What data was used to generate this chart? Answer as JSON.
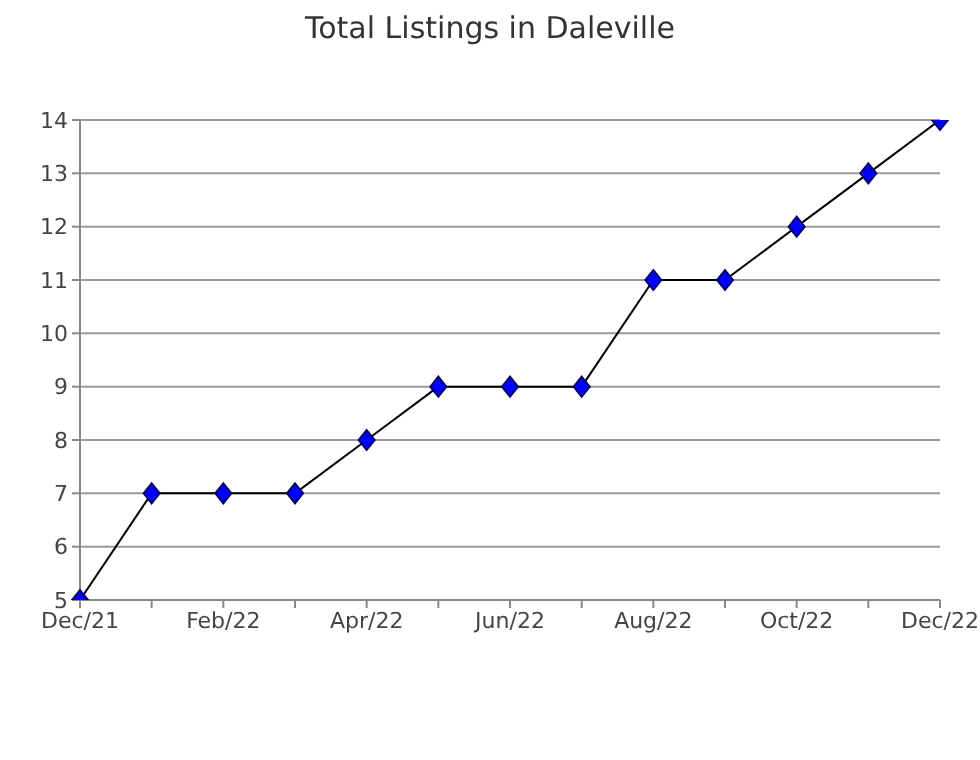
{
  "chart_data": {
    "type": "line",
    "title": "Total Listings in Daleville",
    "categories": [
      "Dec/21",
      null,
      "Feb/22",
      null,
      "Apr/22",
      null,
      "Jun/22",
      null,
      "Aug/22",
      null,
      "Oct/22",
      null,
      "Dec/22"
    ],
    "series": [
      {
        "color": "#0000ff",
        "values": [
          5,
          7,
          7,
          7,
          8,
          9,
          9,
          9,
          11,
          11,
          12,
          13,
          14
        ]
      }
    ],
    "ylim": [
      5,
      14
    ],
    "yticks": [
      5,
      6,
      7,
      8,
      9,
      10,
      11,
      12,
      13,
      14
    ],
    "grid": "y",
    "marker": "diamond",
    "line_style": "solid",
    "legend": false
  }
}
